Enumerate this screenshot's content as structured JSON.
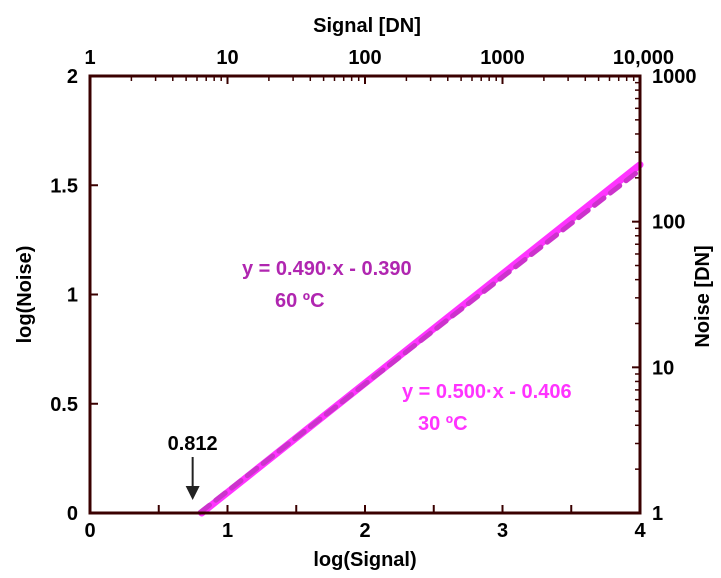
{
  "chart_data": {
    "type": "line",
    "xlabel": "log(Signal)",
    "ylabel": "log(Noise)",
    "top_xlabel": "Signal [DN]",
    "right_ylabel": "Noise [DN]",
    "xlim": [
      0,
      4
    ],
    "ylim": [
      0,
      2
    ],
    "x_ticks": [
      {
        "value": 0,
        "label": "0"
      },
      {
        "value": 1,
        "label": "1"
      },
      {
        "value": 2,
        "label": "2"
      },
      {
        "value": 3,
        "label": "3"
      },
      {
        "value": 4,
        "label": "4"
      }
    ],
    "x_minor_ticks": [
      0.5,
      1.5,
      2.5,
      3.5
    ],
    "y_ticks": [
      {
        "value": 0,
        "label": "0"
      },
      {
        "value": 0.5,
        "label": "0.5"
      },
      {
        "value": 1,
        "label": "1"
      },
      {
        "value": 1.5,
        "label": "1.5"
      },
      {
        "value": 2,
        "label": "2"
      }
    ],
    "top_ticks": [
      {
        "value": 0,
        "label": "1"
      },
      {
        "value": 1,
        "label": "10"
      },
      {
        "value": 2,
        "label": "100"
      },
      {
        "value": 3,
        "label": "1000"
      },
      {
        "value": 4,
        "label": "10,000"
      }
    ],
    "right_ticks": [
      {
        "value": 0,
        "label": "1"
      },
      {
        "value": 1,
        "label": "10"
      },
      {
        "value": 2,
        "label": "100"
      },
      {
        "value": 3,
        "label": "1000"
      }
    ],
    "right_ylim": [
      0,
      3
    ],
    "series": [
      {
        "slope": 0.5,
        "intercept": -0.406,
        "x": [
          0.812,
          4
        ],
        "color": "#ff33ff",
        "style": "solid"
      },
      {
        "slope": 0.49,
        "intercept": -0.39,
        "x": [
          0.8,
          4
        ],
        "color": "#cc33cc",
        "style": "dashed"
      }
    ],
    "annotations": [
      {
        "id": "eq60",
        "text": "y = 0.490·x - 0.390",
        "color": "#b026b0"
      },
      {
        "id": "t60",
        "text": "60 ºC",
        "color": "#b026b0"
      },
      {
        "id": "eq30",
        "text": "y = 0.500·x - 0.406",
        "color": "#ff33ff"
      },
      {
        "id": "t30",
        "text": "30 ºC",
        "color": "#ff33ff"
      },
      {
        "id": "intercept",
        "text": "0.812",
        "color": "#000000",
        "arrow_x": 0.812
      }
    ],
    "grid": false
  }
}
